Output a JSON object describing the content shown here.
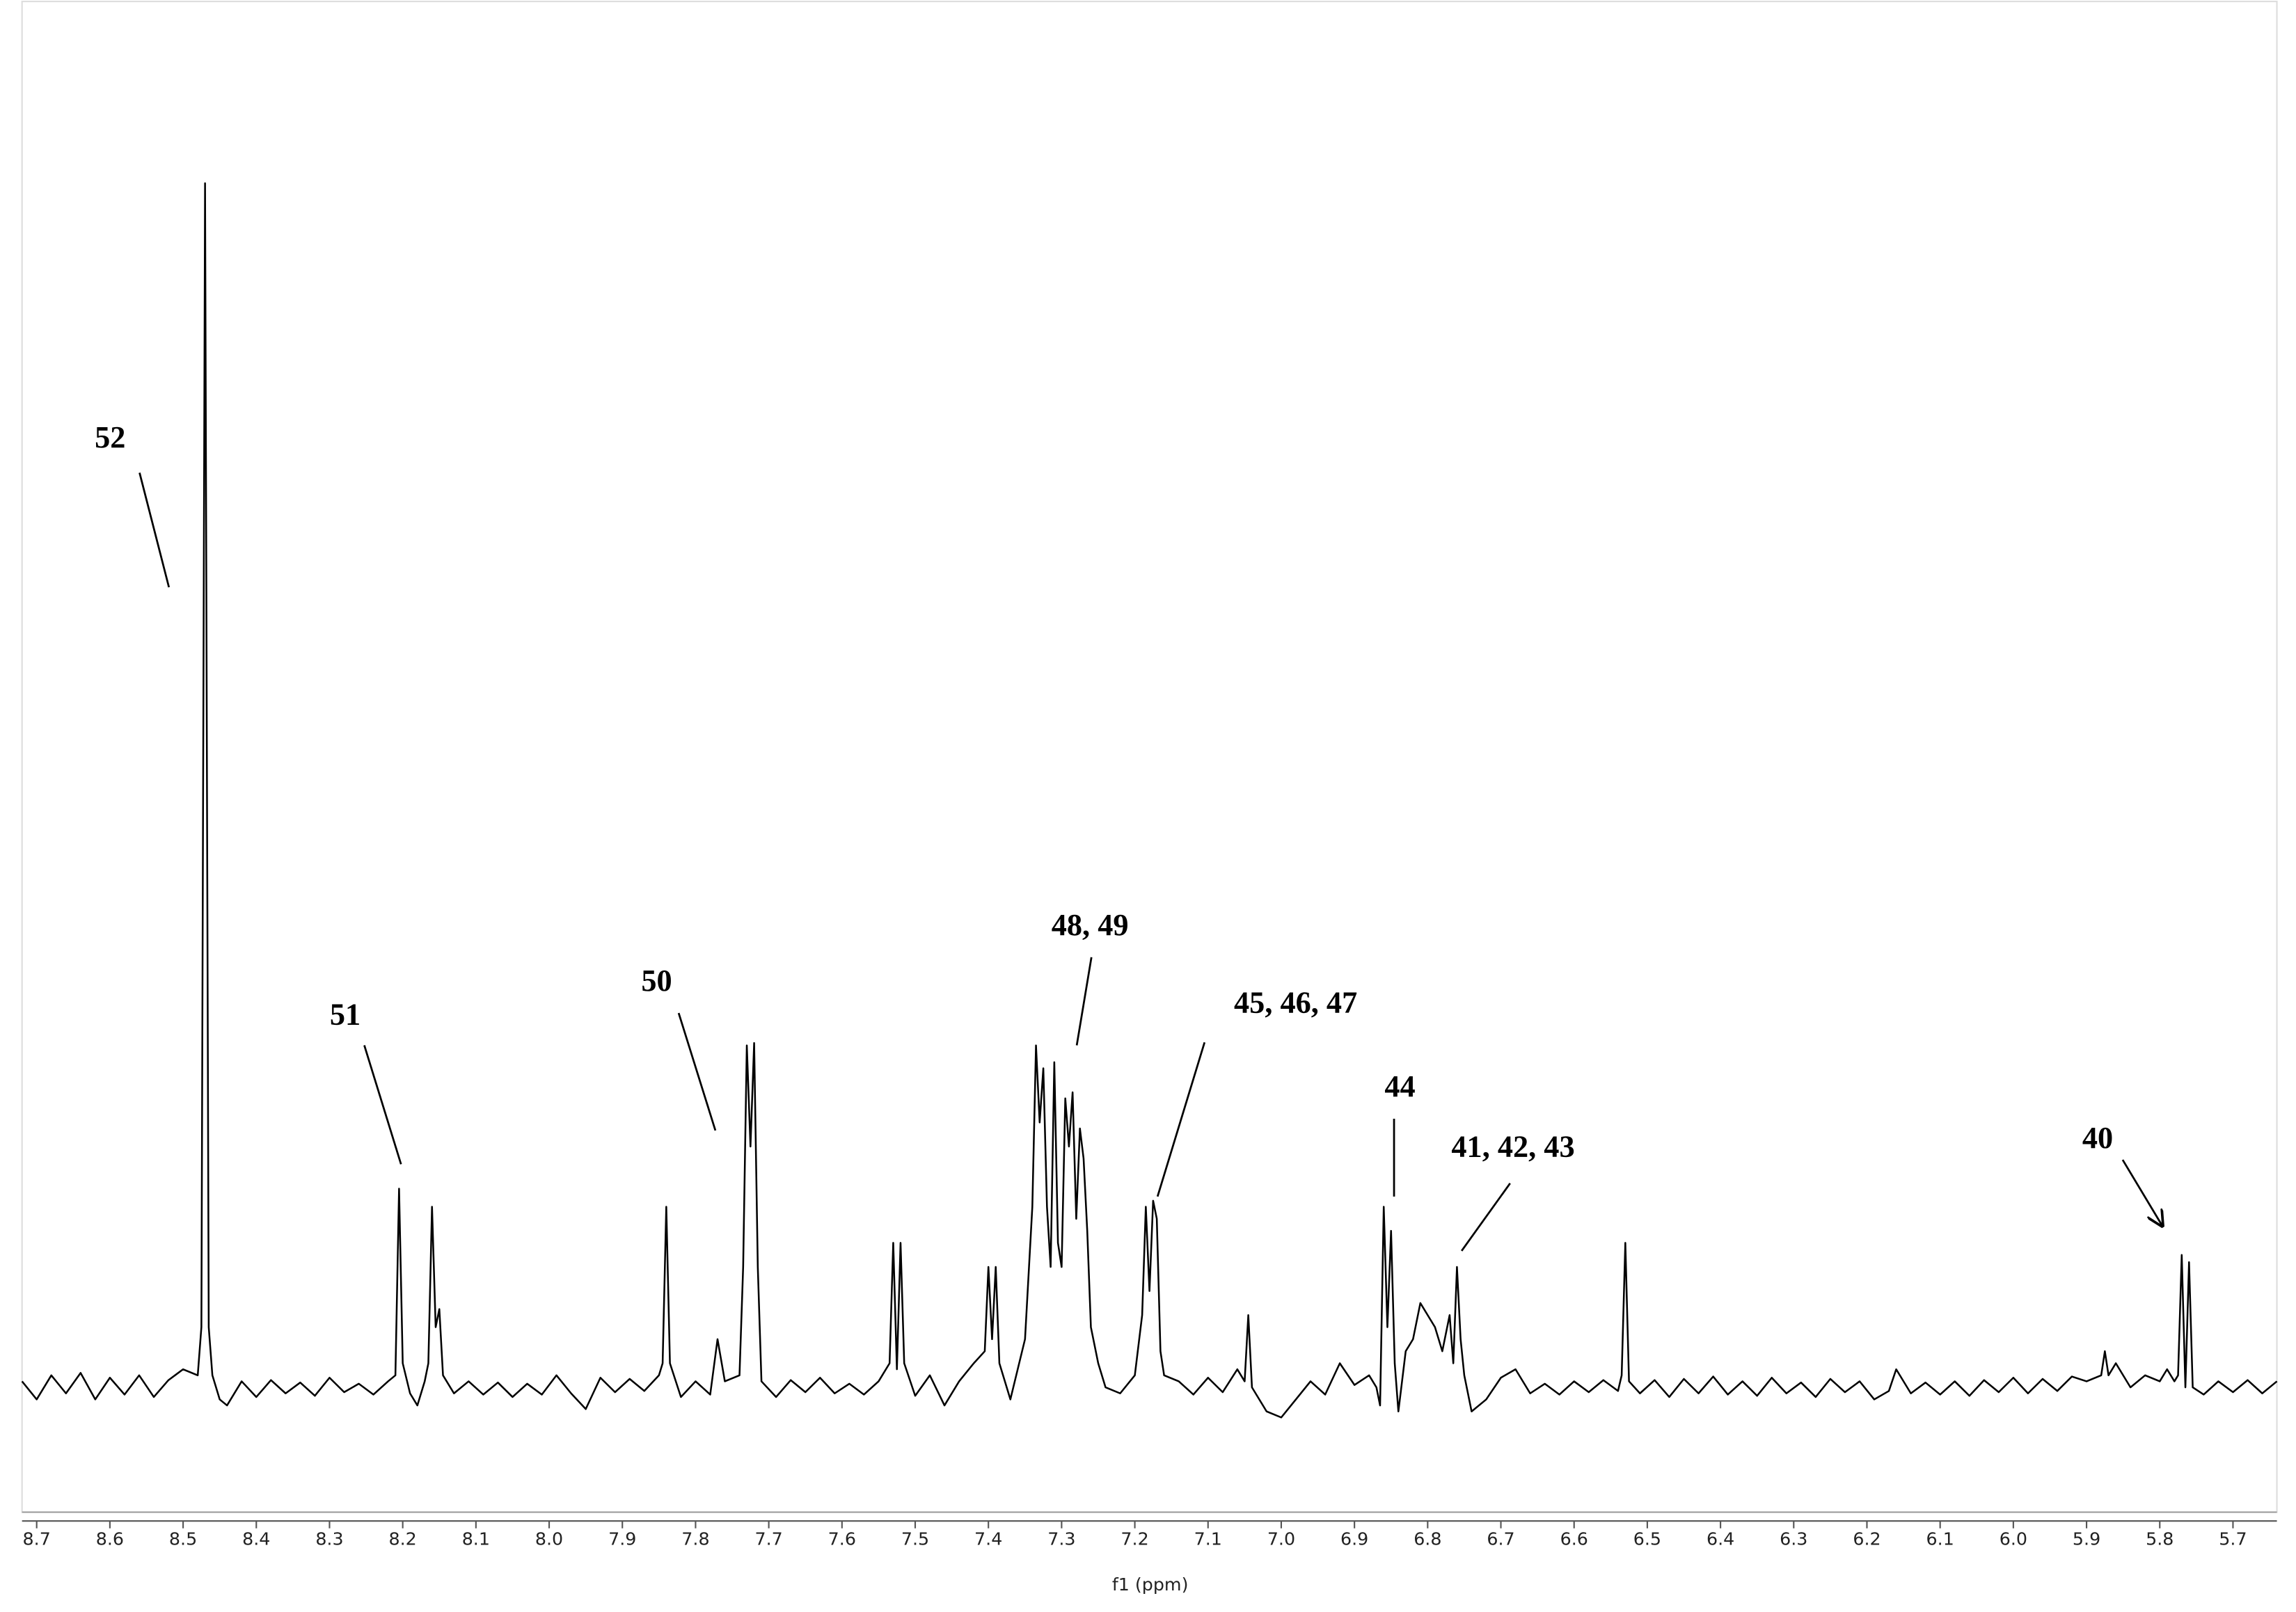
{
  "chart_data": {
    "type": "line",
    "xlabel": "f1 (ppm)",
    "color": "#000000",
    "xlim": [
      8.72,
      5.64
    ],
    "ylim": [
      -10,
      114
    ],
    "xticks": [
      8.7,
      8.6,
      8.5,
      8.4,
      8.3,
      8.2,
      8.1,
      {
        "value": 8,
        "label": "8.0"
      },
      7.9,
      7.8,
      7.7,
      7.6,
      7.5,
      7.4,
      7.3,
      7.2,
      7.1,
      {
        "value": 7,
        "label": "7.0"
      },
      6.9,
      6.8,
      6.7,
      6.6,
      6.5,
      6.4,
      6.3,
      6.2,
      6.1,
      {
        "value": 6,
        "label": "6.0"
      },
      5.9,
      5.8,
      5.7
    ],
    "annotations": [
      "52",
      "51",
      "50",
      "48, 49",
      "45, 46, 47",
      "44",
      "41, 42, 43",
      "40"
    ],
    "x": [
      8.72,
      8.7,
      8.68,
      8.66,
      8.64,
      8.62,
      8.6,
      8.58,
      8.56,
      8.54,
      8.52,
      8.5,
      8.48,
      8.475,
      8.47,
      8.465,
      8.46,
      8.45,
      8.44,
      8.42,
      8.4,
      8.38,
      8.36,
      8.34,
      8.32,
      8.3,
      8.28,
      8.26,
      8.24,
      8.22,
      8.21,
      8.205,
      8.2,
      8.19,
      8.18,
      8.17,
      8.165,
      8.16,
      8.155,
      8.15,
      8.145,
      8.13,
      8.11,
      8.09,
      8.07,
      8.05,
      8.03,
      8.01,
      7.99,
      7.97,
      7.95,
      7.93,
      7.91,
      7.89,
      7.87,
      7.85,
      7.845,
      7.84,
      7.835,
      7.82,
      7.8,
      7.78,
      7.77,
      7.76,
      7.74,
      7.735,
      7.73,
      7.725,
      7.72,
      7.715,
      7.71,
      7.69,
      7.67,
      7.65,
      7.63,
      7.61,
      7.59,
      7.57,
      7.55,
      7.535,
      7.53,
      7.525,
      7.52,
      7.515,
      7.5,
      7.48,
      7.46,
      7.44,
      7.42,
      7.405,
      7.4,
      7.395,
      7.39,
      7.385,
      7.37,
      7.35,
      7.34,
      7.335,
      7.33,
      7.325,
      7.32,
      7.315,
      7.31,
      7.305,
      7.3,
      7.295,
      7.29,
      7.285,
      7.28,
      7.275,
      7.27,
      7.265,
      7.26,
      7.25,
      7.24,
      7.22,
      7.2,
      7.19,
      7.185,
      7.18,
      7.175,
      7.17,
      7.165,
      7.16,
      7.14,
      7.12,
      7.1,
      7.08,
      7.06,
      7.05,
      7.045,
      7.04,
      7.02,
      7.0,
      6.98,
      6.96,
      6.94,
      6.92,
      6.9,
      6.88,
      6.87,
      6.865,
      6.86,
      6.855,
      6.85,
      6.845,
      6.84,
      6.83,
      6.82,
      6.81,
      6.8,
      6.79,
      6.78,
      6.77,
      6.765,
      6.76,
      6.755,
      6.75,
      6.74,
      6.72,
      6.7,
      6.68,
      6.66,
      6.64,
      6.62,
      6.6,
      6.58,
      6.56,
      6.54,
      6.535,
      6.53,
      6.525,
      6.51,
      6.49,
      6.47,
      6.45,
      6.43,
      6.41,
      6.39,
      6.37,
      6.35,
      6.33,
      6.31,
      6.29,
      6.27,
      6.25,
      6.23,
      6.21,
      6.19,
      6.17,
      6.16,
      6.14,
      6.12,
      6.1,
      6.08,
      6.06,
      6.04,
      6.02,
      6.0,
      5.98,
      5.96,
      5.94,
      5.92,
      5.9,
      5.88,
      5.875,
      5.87,
      5.86,
      5.84,
      5.82,
      5.8,
      5.79,
      5.78,
      5.775,
      5.77,
      5.765,
      5.76,
      5.755,
      5.74,
      5.72,
      5.7,
      5.68,
      5.66,
      5.64
    ],
    "values": [
      0.5,
      -1,
      1,
      -0.5,
      1.2,
      -1,
      0.8,
      -0.6,
      1,
      -0.8,
      0.6,
      1.5,
      1,
      5,
      100,
      5,
      1,
      -1,
      -1.5,
      0.5,
      -0.8,
      0.6,
      -0.5,
      0.4,
      -0.7,
      0.8,
      -0.4,
      0.3,
      -0.6,
      0.5,
      1,
      16.5,
      2,
      -0.5,
      -1.5,
      0.5,
      2,
      15,
      5,
      6.5,
      1,
      -0.5,
      0.5,
      -0.6,
      0.4,
      -0.8,
      0.3,
      -0.6,
      1,
      -0.5,
      -1.8,
      0.8,
      -0.4,
      0.7,
      -0.3,
      1,
      2,
      15,
      2,
      -0.8,
      0.5,
      -0.6,
      4,
      0.5,
      1,
      10,
      28.4,
      20,
      28.6,
      10,
      0.5,
      -0.8,
      0.6,
      -0.4,
      0.8,
      -0.5,
      0.3,
      -0.6,
      0.5,
      2,
      12,
      1.5,
      12,
      2,
      -0.7,
      1,
      -1.5,
      0.5,
      2,
      3,
      10,
      4,
      10,
      2,
      -1,
      4,
      15,
      28.4,
      22,
      26.5,
      15,
      10,
      27,
      12,
      10,
      24,
      20,
      24.5,
      14,
      21.5,
      19,
      13,
      5,
      2,
      0,
      -0.5,
      1,
      6,
      15,
      8,
      15.5,
      14,
      3,
      1,
      0.5,
      -0.6,
      0.8,
      -0.4,
      1.5,
      0.5,
      6,
      0,
      -2,
      -2.5,
      -1,
      0.5,
      -0.6,
      2,
      0.2,
      1,
      0,
      -1.5,
      15,
      5,
      13,
      2,
      -2,
      3,
      4,
      7,
      6,
      5,
      3,
      6,
      2,
      10,
      4,
      1,
      -2,
      -1,
      0.8,
      1.5,
      -0.5,
      0.3,
      -0.6,
      0.5,
      -0.4,
      0.6,
      -0.3,
      1,
      12,
      0.5,
      -0.5,
      0.6,
      -0.8,
      0.7,
      -0.5,
      0.9,
      -0.6,
      0.5,
      -0.7,
      0.8,
      -0.5,
      0.4,
      -0.8,
      0.7,
      -0.4,
      0.5,
      -1,
      -0.3,
      1.5,
      -0.5,
      0.4,
      -0.6,
      0.5,
      -0.7,
      0.6,
      -0.4,
      0.8,
      -0.5,
      0.7,
      -0.3,
      0.9,
      0.5,
      1,
      3,
      1,
      2,
      0,
      1,
      0.5,
      1.5,
      0.5,
      1,
      11,
      0,
      10.4,
      0,
      -0.6,
      0.5,
      -0.4,
      0.6,
      -0.5,
      0.5
    ]
  }
}
